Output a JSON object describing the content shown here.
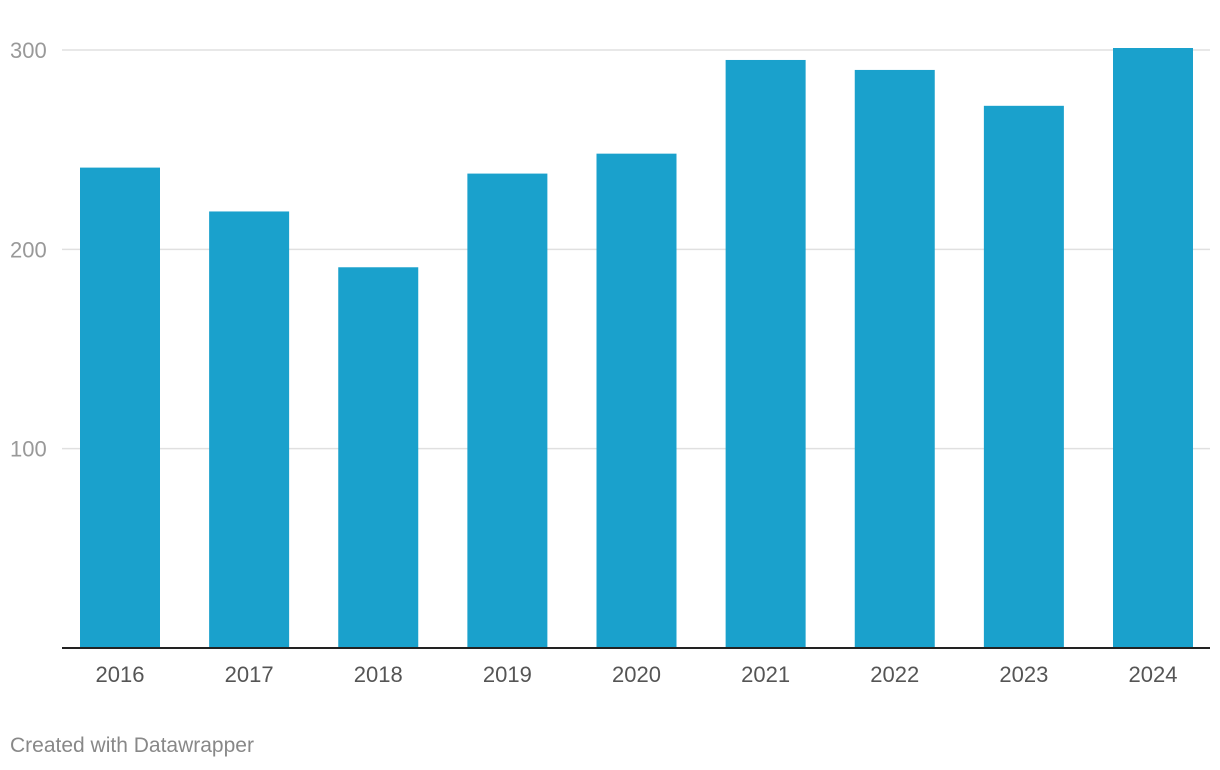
{
  "chart_data": {
    "type": "bar",
    "categories": [
      "2016",
      "2017",
      "2018",
      "2019",
      "2020",
      "2021",
      "2022",
      "2023",
      "2024"
    ],
    "values": [
      241,
      219,
      191,
      238,
      248,
      295,
      290,
      272,
      301
    ],
    "title": "",
    "xlabel": "",
    "ylabel": "",
    "ylim": [
      0,
      300
    ],
    "yticks": [
      100,
      200,
      300
    ],
    "grid": true,
    "bar_color": "#1aa1cc",
    "gridline_color": "#e0e0e0",
    "axis_color": "#222222",
    "tick_label_color": "#999999",
    "category_label_color": "#555555"
  },
  "footer": {
    "credit": "Created with Datawrapper"
  }
}
